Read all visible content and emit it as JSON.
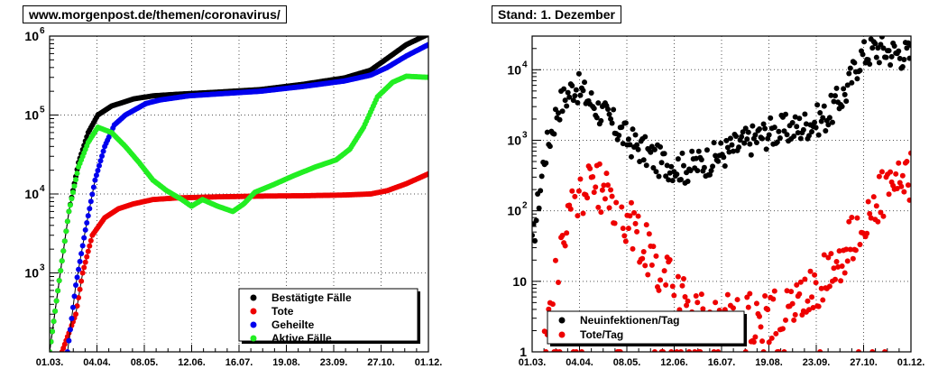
{
  "header": {
    "left_title": "www.morgenpost.de/themen/coronavirus/",
    "right_title": "Stand: 1. Dezember"
  },
  "chart_data": [
    {
      "type": "line",
      "scale": "log",
      "ylim": [
        100,
        1000000
      ],
      "grid": true,
      "legend_position": "bottom-right",
      "x_tick_labels": [
        "01.03.",
        "04.04.",
        "08.05.",
        "12.06.",
        "16.07.",
        "19.08.",
        "23.09.",
        "27.10.",
        "01.12."
      ],
      "y_tick_labels": [
        "10",
        "10",
        "10",
        "10"
      ],
      "y_tick_exponents": [
        "3",
        "4",
        "5",
        "6"
      ],
      "x_axis": {
        "start": "2020-03-01",
        "end": "2020-12-01"
      },
      "series": [
        {
          "name": "Bestätigte Fälle",
          "color": "#000000",
          "points": [
            [
              "2020-03-01",
              100
            ],
            [
              "2020-03-08",
              800
            ],
            [
              "2020-03-15",
              6000
            ],
            [
              "2020-03-22",
              25000
            ],
            [
              "2020-03-29",
              60000
            ],
            [
              "2020-04-05",
              100000
            ],
            [
              "2020-04-15",
              130000
            ],
            [
              "2020-05-01",
              160000
            ],
            [
              "2020-05-15",
              175000
            ],
            [
              "2020-06-01",
              183000
            ],
            [
              "2020-07-01",
              195000
            ],
            [
              "2020-08-01",
              210000
            ],
            [
              "2020-09-01",
              245000
            ],
            [
              "2020-10-01",
              295000
            ],
            [
              "2020-10-20",
              370000
            ],
            [
              "2020-11-01",
              520000
            ],
            [
              "2020-11-15",
              780000
            ],
            [
              "2020-12-01",
              1060000
            ]
          ]
        },
        {
          "name": "Tote",
          "color": "#ee0000",
          "points": [
            [
              "2020-03-10",
              100
            ],
            [
              "2020-03-20",
              300
            ],
            [
              "2020-03-25",
              1000
            ],
            [
              "2020-04-01",
              3000
            ],
            [
              "2020-04-10",
              5000
            ],
            [
              "2020-04-20",
              6500
            ],
            [
              "2020-05-01",
              7500
            ],
            [
              "2020-05-15",
              8500
            ],
            [
              "2020-06-01",
              8900
            ],
            [
              "2020-07-01",
              9200
            ],
            [
              "2020-08-01",
              9400
            ],
            [
              "2020-09-01",
              9500
            ],
            [
              "2020-10-01",
              9700
            ],
            [
              "2020-10-20",
              10000
            ],
            [
              "2020-11-01",
              11000
            ],
            [
              "2020-11-15",
              13500
            ],
            [
              "2020-12-01",
              18000
            ]
          ]
        },
        {
          "name": "Geheilte",
          "color": "#0000ee",
          "points": [
            [
              "2020-03-14",
              100
            ],
            [
              "2020-03-20",
              700
            ],
            [
              "2020-03-27",
              3500
            ],
            [
              "2020-04-03",
              15000
            ],
            [
              "2020-04-10",
              40000
            ],
            [
              "2020-04-17",
              75000
            ],
            [
              "2020-04-25",
              100000
            ],
            [
              "2020-05-10",
              140000
            ],
            [
              "2020-05-20",
              155000
            ],
            [
              "2020-06-10",
              175000
            ],
            [
              "2020-07-01",
              185000
            ],
            [
              "2020-08-01",
              200000
            ],
            [
              "2020-09-01",
              230000
            ],
            [
              "2020-10-01",
              270000
            ],
            [
              "2020-10-20",
              320000
            ],
            [
              "2020-11-01",
              400000
            ],
            [
              "2020-11-15",
              560000
            ],
            [
              "2020-12-01",
              780000
            ]
          ]
        },
        {
          "name": "Aktive Fälle",
          "color": "#22ee22",
          "points": [
            [
              "2020-03-01",
              100
            ],
            [
              "2020-03-08",
              800
            ],
            [
              "2020-03-15",
              6000
            ],
            [
              "2020-03-22",
              22000
            ],
            [
              "2020-03-29",
              45000
            ],
            [
              "2020-04-05",
              70000
            ],
            [
              "2020-04-15",
              60000
            ],
            [
              "2020-04-25",
              40000
            ],
            [
              "2020-05-05",
              25000
            ],
            [
              "2020-05-15",
              15000
            ],
            [
              "2020-05-25",
              11000
            ],
            [
              "2020-06-05",
              8500
            ],
            [
              "2020-06-12",
              7000
            ],
            [
              "2020-06-20",
              8500
            ],
            [
              "2020-07-01",
              7000
            ],
            [
              "2020-07-12",
              6000
            ],
            [
              "2020-07-20",
              7500
            ],
            [
              "2020-07-28",
              10500
            ],
            [
              "2020-08-10",
              13000
            ],
            [
              "2020-08-25",
              17000
            ],
            [
              "2020-09-10",
              22000
            ],
            [
              "2020-09-25",
              27000
            ],
            [
              "2020-10-05",
              37000
            ],
            [
              "2020-10-15",
              70000
            ],
            [
              "2020-10-25",
              170000
            ],
            [
              "2020-11-05",
              260000
            ],
            [
              "2020-11-15",
              310000
            ],
            [
              "2020-12-01",
              300000
            ]
          ]
        }
      ]
    },
    {
      "type": "scatter",
      "scale": "log",
      "ylim": [
        1,
        30000
      ],
      "grid": true,
      "legend_position": "bottom-left",
      "x_tick_labels": [
        "01.03.",
        "04.04.",
        "08.05.",
        "12.06.",
        "16.07.",
        "19.08.",
        "23.09.",
        "27.10.",
        "01.12."
      ],
      "y_tick_labels": [
        "1",
        "10",
        "10",
        "10",
        "10"
      ],
      "y_tick_exponents": [
        "",
        "",
        "2",
        "3",
        "4"
      ],
      "x_axis": {
        "start": "2020-03-01",
        "end": "2020-12-01"
      },
      "series": [
        {
          "name": "Neuinfektionen/Tag",
          "color": "#000000",
          "trend": [
            [
              "2020-03-01",
              30
            ],
            [
              "2020-03-10",
              600
            ],
            [
              "2020-03-20",
              3000
            ],
            [
              "2020-04-01",
              6000
            ],
            [
              "2020-04-10",
              4000
            ],
            [
              "2020-04-25",
              2000
            ],
            [
              "2020-05-10",
              1000
            ],
            [
              "2020-06-01",
              500
            ],
            [
              "2020-06-20",
              400
            ],
            [
              "2020-07-10",
              550
            ],
            [
              "2020-08-01",
              900
            ],
            [
              "2020-08-20",
              1300
            ],
            [
              "2020-09-10",
              1500
            ],
            [
              "2020-10-01",
              2200
            ],
            [
              "2020-10-15",
              5000
            ],
            [
              "2020-10-25",
              15000
            ],
            [
              "2020-11-05",
              20000
            ],
            [
              "2020-12-01",
              16000
            ]
          ]
        },
        {
          "name": "Tote/Tag",
          "color": "#ee0000",
          "trend": [
            [
              "2020-03-10",
              1
            ],
            [
              "2020-03-20",
              20
            ],
            [
              "2020-04-01",
              150
            ],
            [
              "2020-04-15",
              250
            ],
            [
              "2020-05-01",
              120
            ],
            [
              "2020-05-15",
              50
            ],
            [
              "2020-06-01",
              15
            ],
            [
              "2020-06-20",
              5
            ],
            [
              "2020-07-10",
              3
            ],
            [
              "2020-08-01",
              3
            ],
            [
              "2020-08-20",
              3
            ],
            [
              "2020-09-10",
              5
            ],
            [
              "2020-10-01",
              12
            ],
            [
              "2020-10-20",
              40
            ],
            [
              "2020-11-05",
              140
            ],
            [
              "2020-12-01",
              300
            ]
          ]
        }
      ]
    }
  ]
}
